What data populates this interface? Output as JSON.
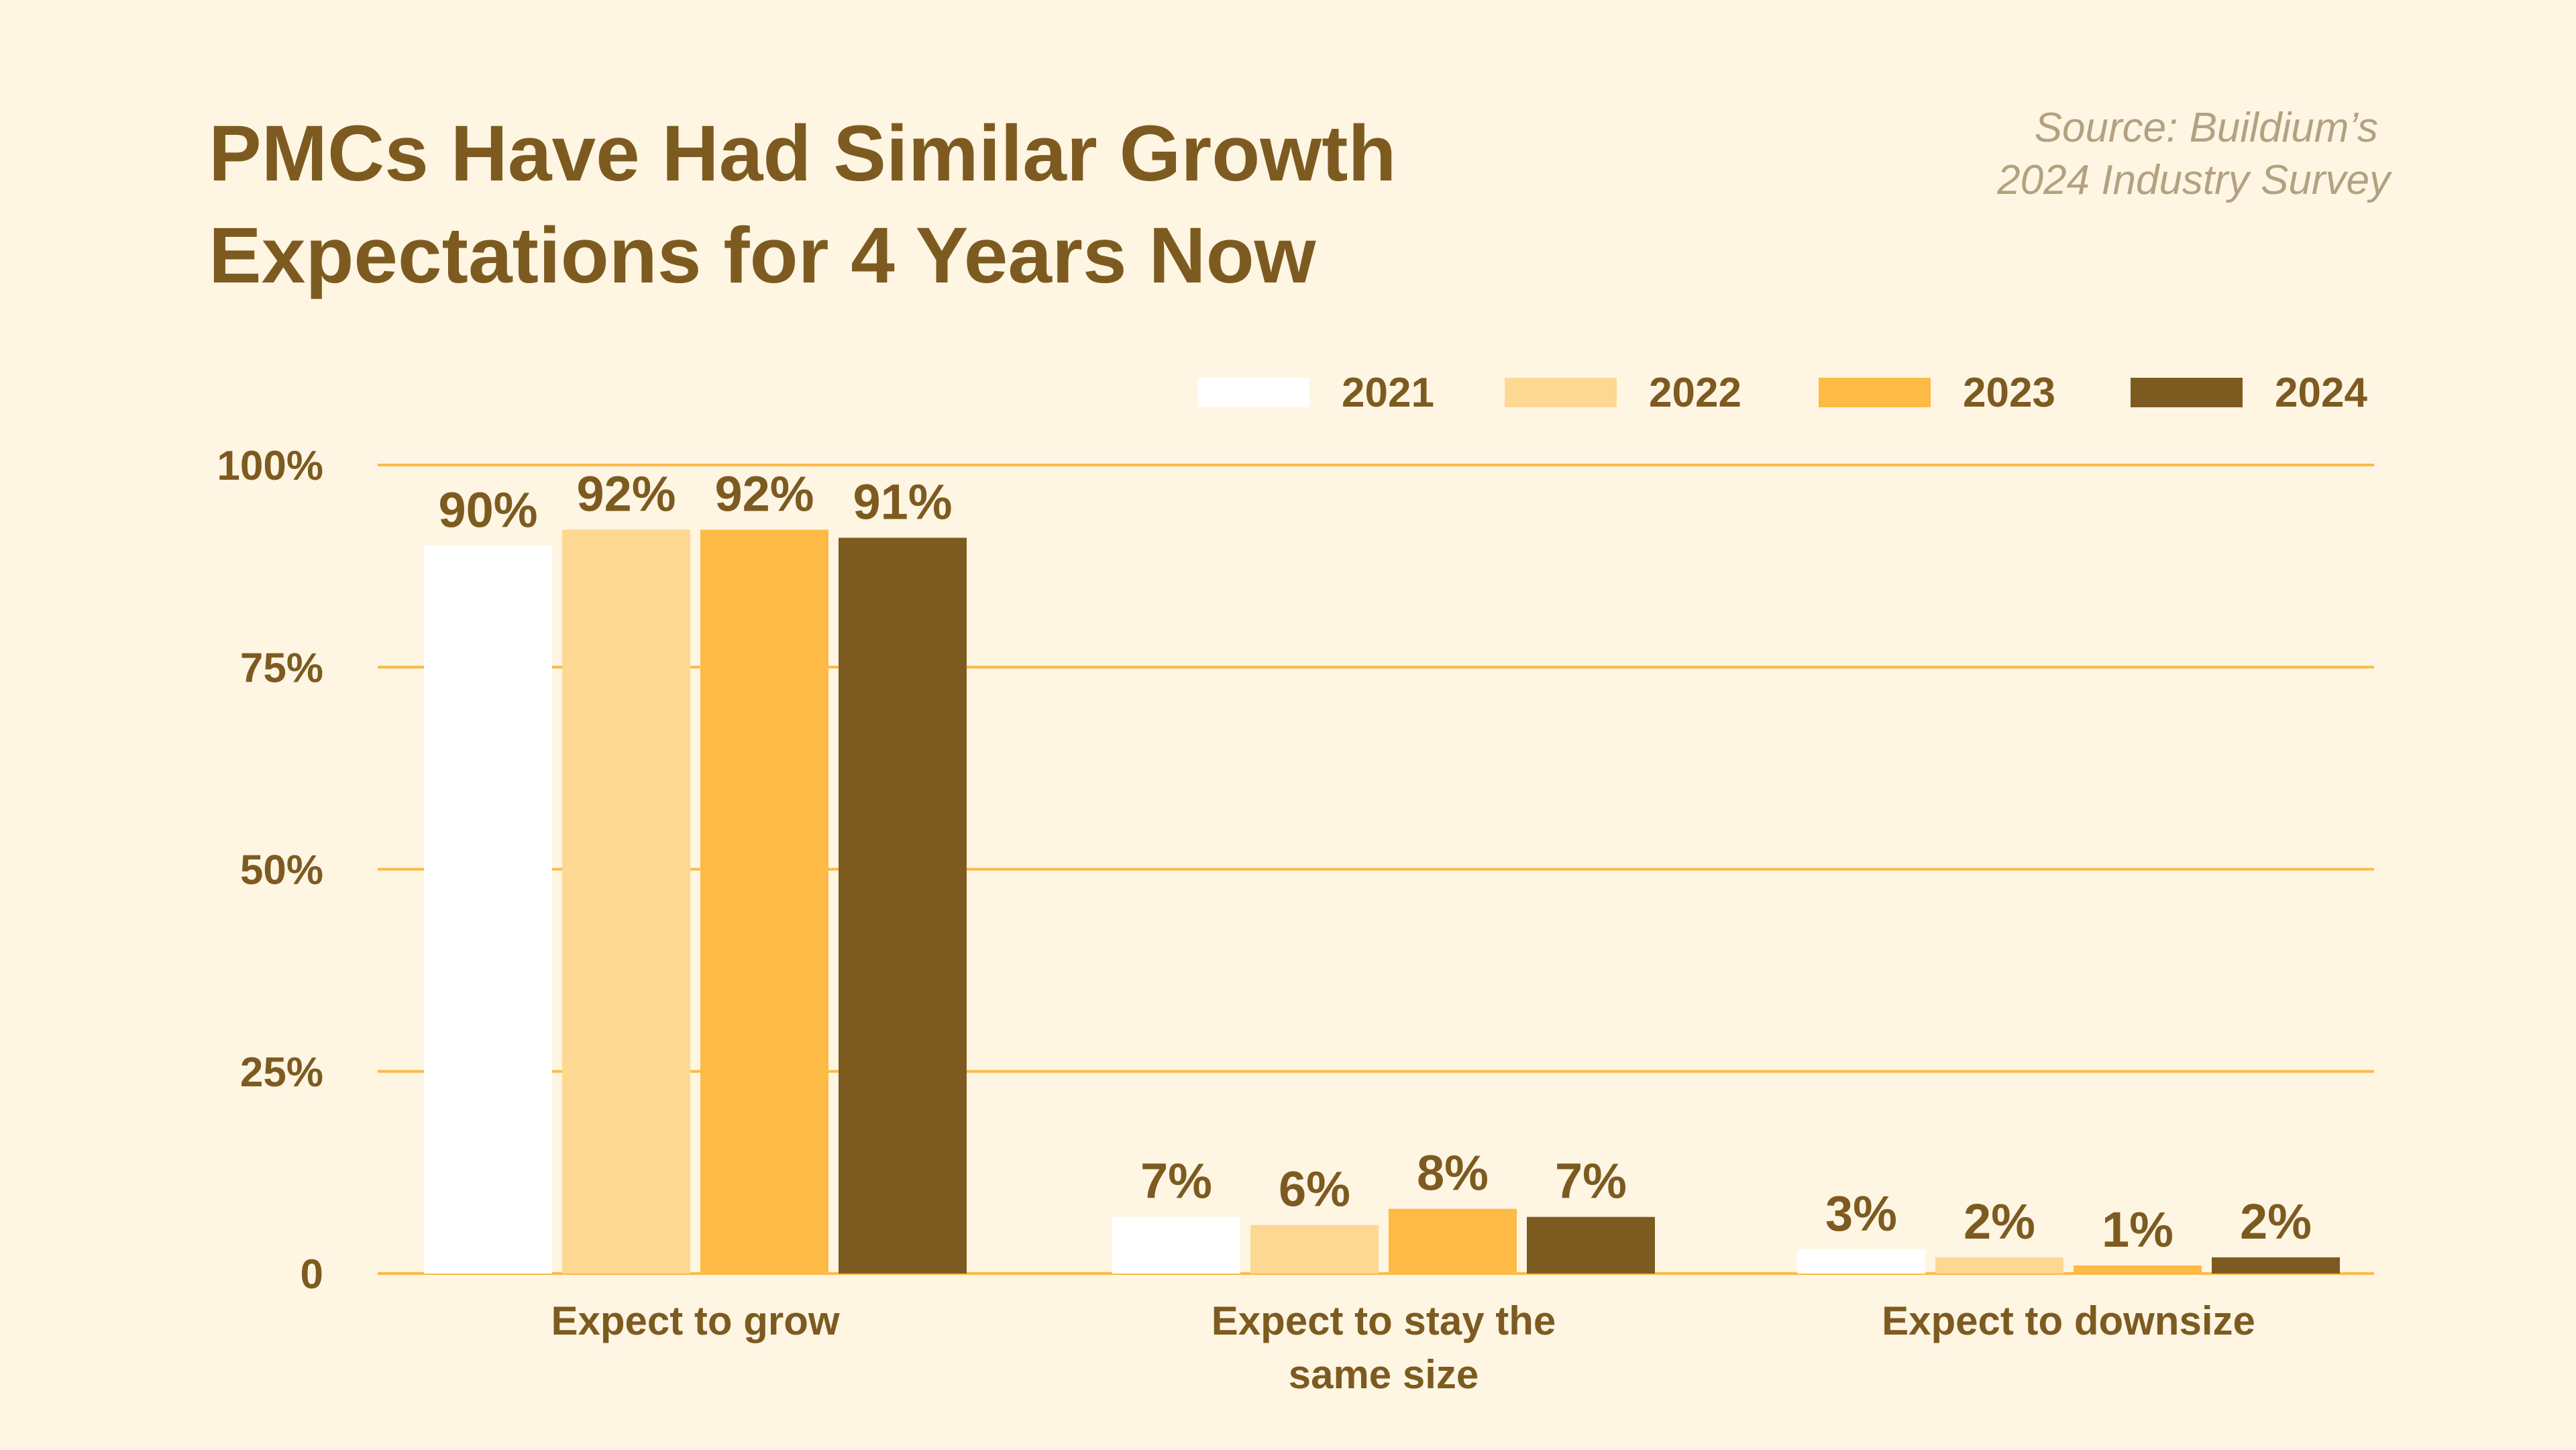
{
  "chart_data": {
    "type": "bar",
    "title": [
      "PMCs Have Had Similar Growth",
      "Expectations for 4 Years Now"
    ],
    "source": [
      "Source: Buildium’s",
      "2024 Industry Survey"
    ],
    "categories": [
      [
        "Expect to grow"
      ],
      [
        "Expect to stay the",
        "same size"
      ],
      [
        "Expect to downsize"
      ]
    ],
    "series": [
      {
        "name": "2021",
        "color": "#FFFFFF",
        "values": [
          90,
          7,
          3
        ]
      },
      {
        "name": "2022",
        "color": "#FDD893",
        "values": [
          92,
          6,
          2
        ]
      },
      {
        "name": "2023",
        "color": "#FDBA45",
        "values": [
          92,
          8,
          1
        ]
      },
      {
        "name": "2024",
        "color": "#7D5B20",
        "values": [
          91,
          7,
          2
        ]
      }
    ],
    "yticks": [
      0,
      25,
      50,
      75,
      100
    ],
    "ytick_labels": [
      "0",
      "25%",
      "50%",
      "75%",
      "100%"
    ],
    "ylim": [
      0,
      100
    ],
    "grid": true,
    "grid_color": "#FDBA45",
    "background": "#FEF5E3",
    "text_color": "#7D5B20",
    "legend_position": "top-right",
    "value_labels": [
      [
        "90%",
        "7%",
        "3%"
      ],
      [
        "92%",
        "6%",
        "2%"
      ],
      [
        "92%",
        "8%",
        "1%"
      ],
      [
        "91%",
        "7%",
        "2%"
      ]
    ]
  }
}
